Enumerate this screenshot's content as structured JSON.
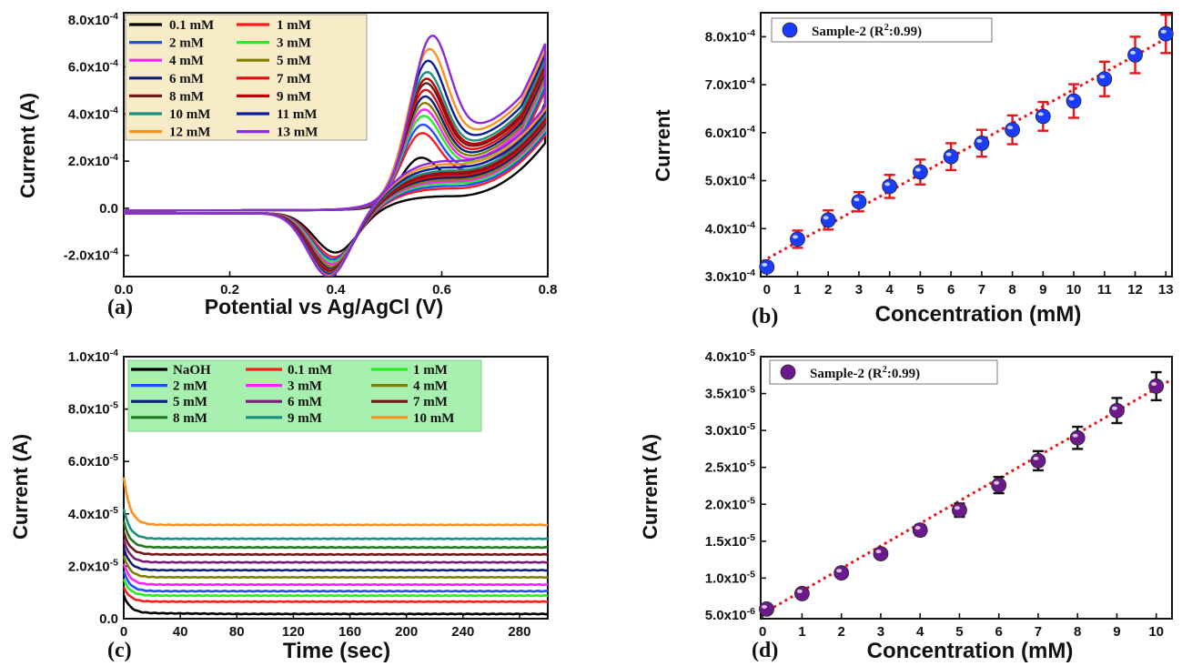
{
  "chart_data": [
    {
      "panel": "(a)",
      "type": "line",
      "xlabel": "Potential vs Ag/AgCl (V)",
      "ylabel": "Current (A)",
      "xlim": [
        0.0,
        0.8
      ],
      "ylim": [
        -0.00029,
        0.00083
      ],
      "xticks": [
        "0.0",
        "0.2",
        "0.4",
        "0.6",
        "0.8"
      ],
      "yticks": [
        {
          "v": -0.0002,
          "label": "-2.0x10^-4"
        },
        {
          "v": 0.0,
          "label": "0.0"
        },
        {
          "v": 0.0002,
          "label": "2.0x10^-4"
        },
        {
          "v": 0.0004,
          "label": "4.0x10^-4"
        },
        {
          "v": 0.0006,
          "label": "6.0x10^-4"
        },
        {
          "v": 0.0008,
          "label": "8.0x10^-4"
        }
      ],
      "legend_position": "top-left",
      "legend_bg": "#f8ecc8",
      "series": [
        {
          "name": "0.1 mM",
          "color": "#000000",
          "anodic_peak": 0.00026,
          "anodic_peak_v": 0.555,
          "cathodic_peak": -0.00017,
          "cathodic_peak_v": 0.4
        },
        {
          "name": "1 mM",
          "color": "#ff1a1a",
          "anodic_peak": 0.00038,
          "anodic_peak_v": 0.557,
          "cathodic_peak": -0.00019,
          "cathodic_peak_v": 0.398
        },
        {
          "name": "2 mM",
          "color": "#1f4fff",
          "anodic_peak": 0.00042,
          "anodic_peak_v": 0.558,
          "cathodic_peak": -0.0002,
          "cathodic_peak_v": 0.396
        },
        {
          "name": "3 mM",
          "color": "#22ee22",
          "anodic_peak": 0.00046,
          "anodic_peak_v": 0.56,
          "cathodic_peak": -0.00021,
          "cathodic_peak_v": 0.395
        },
        {
          "name": "4 mM",
          "color": "#ff22ff",
          "anodic_peak": 0.00049,
          "anodic_peak_v": 0.561,
          "cathodic_peak": -0.00022,
          "cathodic_peak_v": 0.394
        },
        {
          "name": "5 mM",
          "color": "#808000",
          "anodic_peak": 0.00052,
          "anodic_peak_v": 0.562,
          "cathodic_peak": -0.00023,
          "cathodic_peak_v": 0.393
        },
        {
          "name": "6 mM",
          "color": "#0a1e7a",
          "anodic_peak": 0.00055,
          "anodic_peak_v": 0.563,
          "cathodic_peak": -0.00024,
          "cathodic_peak_v": 0.392
        },
        {
          "name": "7 mM",
          "color": "#e01010",
          "anodic_peak": 0.00058,
          "anodic_peak_v": 0.564,
          "cathodic_peak": -0.000245,
          "cathodic_peak_v": 0.391
        },
        {
          "name": "8 mM",
          "color": "#701818",
          "anodic_peak": 0.00061,
          "anodic_peak_v": 0.565,
          "cathodic_peak": -0.00025,
          "cathodic_peak_v": 0.39
        },
        {
          "name": "9 mM",
          "color": "#c00000",
          "anodic_peak": 0.00063,
          "anodic_peak_v": 0.566,
          "cathodic_peak": -0.000255,
          "cathodic_peak_v": 0.39
        },
        {
          "name": "10 mM",
          "color": "#1a9080",
          "anodic_peak": 0.00066,
          "anodic_peak_v": 0.567,
          "cathodic_peak": -0.00026,
          "cathodic_peak_v": 0.389
        },
        {
          "name": "11 mM",
          "color": "#0a1e9a",
          "anodic_peak": 0.00071,
          "anodic_peak_v": 0.569,
          "cathodic_peak": -0.000265,
          "cathodic_peak_v": 0.389
        },
        {
          "name": "12 mM",
          "color": "#ff9020",
          "anodic_peak": 0.00076,
          "anodic_peak_v": 0.572,
          "cathodic_peak": -0.00027,
          "cathodic_peak_v": 0.388
        },
        {
          "name": "13 mM",
          "color": "#8a2be2",
          "anodic_peak": 0.00081,
          "anodic_peak_v": 0.578,
          "cathodic_peak": -0.000275,
          "cathodic_peak_v": 0.388
        }
      ]
    },
    {
      "panel": "(b)",
      "type": "scatter",
      "xlabel": "Concentration (mM)",
      "ylabel": "Current",
      "xlim": [
        -0.2,
        13.2
      ],
      "ylim": [
        0.0003,
        0.00085
      ],
      "xticks": [
        "0",
        "1",
        "2",
        "3",
        "4",
        "5",
        "6",
        "7",
        "8",
        "9",
        "10",
        "11",
        "12",
        "13"
      ],
      "yticks": [
        {
          "v": 0.0003,
          "label": "3.0x10^-4"
        },
        {
          "v": 0.0004,
          "label": "4.0x10^-4"
        },
        {
          "v": 0.0005,
          "label": "5.0x10^-4"
        },
        {
          "v": 0.0006,
          "label": "6.0x10^-4"
        },
        {
          "v": 0.0007,
          "label": "7.0x10^-4"
        },
        {
          "v": 0.0008,
          "label": "8.0x10^-4"
        }
      ],
      "legend_position": "top-left",
      "legend": "Sample-2 (R^2:0.99)",
      "marker_color": "#1a3cff",
      "errorbar_color": "#e8161c",
      "fit_color": "#e8161c",
      "fit": [
        0.000337,
        3.53e-05
      ],
      "series": [
        {
          "name": "Sample-2 (R^2:0.99)",
          "x": [
            0,
            1,
            2,
            3,
            4,
            5,
            6,
            7,
            8,
            9,
            10,
            11,
            12,
            13
          ],
          "y": [
            0.00032,
            0.000378,
            0.000418,
            0.000456,
            0.000488,
            0.000518,
            0.00055,
            0.000578,
            0.000606,
            0.000634,
            0.000666,
            0.000712,
            0.000762,
            0.000806
          ],
          "err": [
            8e-06,
            1.8e-05,
            2e-05,
            2e-05,
            2.4e-05,
            2.6e-05,
            2.8e-05,
            2.8e-05,
            3e-05,
            3e-05,
            3.5e-05,
            3.6e-05,
            3.8e-05,
            4e-05
          ]
        }
      ]
    },
    {
      "panel": "(c)",
      "type": "line",
      "xlabel": "Time (sec)",
      "ylabel": "Current (A)",
      "xlim": [
        0,
        300
      ],
      "ylim": [
        0,
        0.0001
      ],
      "xticks": [
        "0",
        "40",
        "80",
        "120",
        "160",
        "200",
        "240",
        "280"
      ],
      "yticks": [
        {
          "v": 0.0,
          "label": "0.0"
        },
        {
          "v": 2e-05,
          "label": "2.0x10^-5"
        },
        {
          "v": 4e-05,
          "label": "4.0x10^-5"
        },
        {
          "v": 6e-05,
          "label": "6.0x10^-5"
        },
        {
          "v": 8e-05,
          "label": "8.0x10^-5"
        },
        {
          "v": 0.0001,
          "label": "1.0x10^-4"
        }
      ],
      "legend_position": "top-left",
      "legend_bg": "#a8f0b0",
      "series": [
        {
          "name": "NaOH",
          "color": "#000000",
          "steady": 2.2e-06,
          "initial": 9e-06
        },
        {
          "name": "0.1 mM",
          "color": "#ff1a1a",
          "steady": 6.5e-06,
          "initial": 1.2e-05
        },
        {
          "name": "1 mM",
          "color": "#22ee22",
          "steady": 8.8e-06,
          "initial": 1.5e-05
        },
        {
          "name": "2 mM",
          "color": "#1f4fff",
          "steady": 1.05e-05,
          "initial": 1.8e-05
        },
        {
          "name": "3 mM",
          "color": "#ff22ff",
          "steady": 1.3e-05,
          "initial": 2.1e-05
        },
        {
          "name": "4 mM",
          "color": "#808000",
          "steady": 1.58e-05,
          "initial": 2.4e-05
        },
        {
          "name": "5 mM",
          "color": "#0a1e7a",
          "steady": 1.85e-05,
          "initial": 2.7e-05
        },
        {
          "name": "6 mM",
          "color": "#7a1a7a",
          "steady": 2.15e-05,
          "initial": 3e-05
        },
        {
          "name": "7 mM",
          "color": "#701818",
          "steady": 2.45e-05,
          "initial": 3.3e-05
        },
        {
          "name": "8 mM",
          "color": "#1e7a1e",
          "steady": 2.72e-05,
          "initial": 3.7e-05
        },
        {
          "name": "9 mM",
          "color": "#1a9080",
          "steady": 3.05e-05,
          "initial": 4.2e-05
        },
        {
          "name": "10 mM",
          "color": "#ff9020",
          "steady": 3.58e-05,
          "initial": 5.4e-05
        }
      ]
    },
    {
      "panel": "(d)",
      "type": "scatter",
      "xlabel": "Concentration (mM)",
      "ylabel": "Current (A)",
      "xlim": [
        -0.05,
        10.4
      ],
      "ylim": [
        4.5e-06,
        4e-05
      ],
      "xticks": [
        "0",
        "1",
        "2",
        "3",
        "4",
        "5",
        "6",
        "7",
        "8",
        "9",
        "10"
      ],
      "yticks": [
        {
          "v": 5e-06,
          "label": "5.0x10^-6"
        },
        {
          "v": 1e-05,
          "label": "1.0x10^-5"
        },
        {
          "v": 1.5e-05,
          "label": "1.5x10^-5"
        },
        {
          "v": 2e-05,
          "label": "2.0x10^-5"
        },
        {
          "v": 2.5e-05,
          "label": "2.5x10^-5"
        },
        {
          "v": 3e-05,
          "label": "3.0x10^-5"
        },
        {
          "v": 3.5e-05,
          "label": "3.5x10^-5"
        },
        {
          "v": 4e-05,
          "label": "4.0x10^-5"
        }
      ],
      "legend_position": "top-left",
      "legend": "Sample-2 (R^2:0.99)",
      "marker_color": "#6a1a8a",
      "errorbar_color": "#111111",
      "fit_color": "#e8161c",
      "fit": [
        5.2e-06,
        3.05e-06
      ],
      "series": [
        {
          "name": "Sample-2 (R^2:0.99)",
          "x": [
            0.1,
            1,
            2,
            3,
            4,
            5,
            6,
            7,
            8,
            9,
            10
          ],
          "y": [
            5.8e-06,
            7.9e-06,
            1.07e-05,
            1.33e-05,
            1.65e-05,
            1.92e-05,
            2.26e-05,
            2.59e-05,
            2.9e-05,
            3.27e-05,
            3.6e-05
          ],
          "err": [
            3e-07,
            4e-07,
            4e-07,
            5e-07,
            7e-07,
            9e-07,
            1.1e-06,
            1.3e-06,
            1.5e-06,
            1.7e-06,
            1.9e-06
          ]
        }
      ]
    }
  ]
}
